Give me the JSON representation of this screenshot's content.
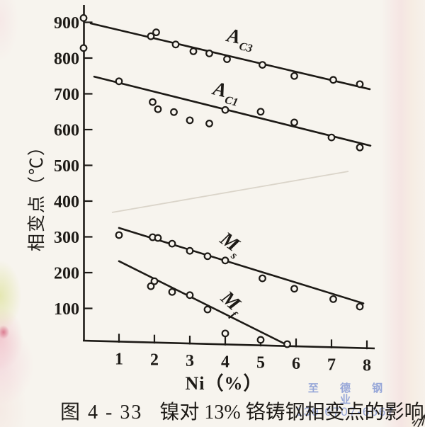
{
  "page": {
    "caption": {
      "figure_no": "图 4 - 33",
      "title": "镍对 13% 铬铸钢相变点的影响"
    },
    "watermark": {
      "line1": "至 德 钢 业",
      "line2": "139 6707-6667",
      "color": "#7c91d2"
    }
  },
  "chart_data": {
    "type": "scatter",
    "title": "镍对13%铬铸钢相变点的影响",
    "xlabel": "Ni（%）",
    "ylabel": "相变点（℃）",
    "xlim": [
      0,
      8.2
    ],
    "ylim": [
      0,
      950
    ],
    "grid": false,
    "x_ticks": [
      1,
      2,
      3,
      4,
      5,
      6,
      7,
      8
    ],
    "y_ticks": [
      100,
      200,
      300,
      400,
      500,
      600,
      700,
      800,
      900
    ],
    "ink_color": "#1d1a16",
    "paper_color": "#f7f4ee",
    "series": [
      {
        "name": "AC3",
        "label": {
          "main": "A",
          "sub": "C3"
        },
        "label_at": [
          4.4,
          840
        ],
        "label_rotation": 12,
        "trend_line": [
          [
            0.2,
            897
          ],
          [
            8.08,
            713
          ]
        ],
        "points": [
          [
            0,
            912
          ],
          [
            0,
            828
          ],
          [
            1.9,
            861
          ],
          [
            2.05,
            872
          ],
          [
            2.6,
            838
          ],
          [
            3.1,
            819
          ],
          [
            3.55,
            813
          ],
          [
            4.05,
            797
          ],
          [
            5.05,
            781
          ],
          [
            5.95,
            750
          ],
          [
            7.05,
            739
          ],
          [
            7.8,
            727
          ]
        ]
      },
      {
        "name": "AC1",
        "label": {
          "main": "A",
          "sub": "C1"
        },
        "label_at": [
          4.0,
          690
        ],
        "label_rotation": 14,
        "trend_line": [
          [
            0.3,
            748
          ],
          [
            8.1,
            555
          ]
        ],
        "points": [
          [
            1.0,
            735
          ],
          [
            1.95,
            677
          ],
          [
            2.1,
            657
          ],
          [
            2.55,
            649
          ],
          [
            3.0,
            626
          ],
          [
            3.55,
            617
          ],
          [
            4.0,
            655
          ],
          [
            5.0,
            650
          ],
          [
            5.95,
            620
          ],
          [
            7.0,
            578
          ],
          [
            7.8,
            550
          ]
        ]
      },
      {
        "name": "Ms",
        "label": {
          "main": "M",
          "sub": "s"
        },
        "label_at": [
          4.08,
          268
        ],
        "label_rotation": 36,
        "trend_line": [
          [
            1.0,
            325
          ],
          [
            7.9,
            114
          ]
        ],
        "points": [
          [
            1.0,
            305
          ],
          [
            1.95,
            299
          ],
          [
            2.1,
            297
          ],
          [
            2.5,
            281
          ],
          [
            3.0,
            261
          ],
          [
            3.5,
            246
          ],
          [
            4.0,
            234
          ],
          [
            5.05,
            184
          ],
          [
            5.95,
            155
          ],
          [
            7.05,
            126
          ],
          [
            7.8,
            105
          ]
        ]
      },
      {
        "name": "Mf",
        "label": {
          "main": "M",
          "sub": "f"
        },
        "label_at": [
          4.08,
          104
        ],
        "label_rotation": 42,
        "trend_line": [
          [
            1.0,
            232
          ],
          [
            5.7,
            0
          ]
        ],
        "points": [
          [
            1.9,
            162
          ],
          [
            2.0,
            176
          ],
          [
            2.5,
            146
          ],
          [
            3.0,
            137
          ],
          [
            3.5,
            97
          ],
          [
            4.0,
            30
          ],
          [
            5.0,
            12
          ],
          [
            5.75,
            0
          ]
        ]
      }
    ]
  }
}
